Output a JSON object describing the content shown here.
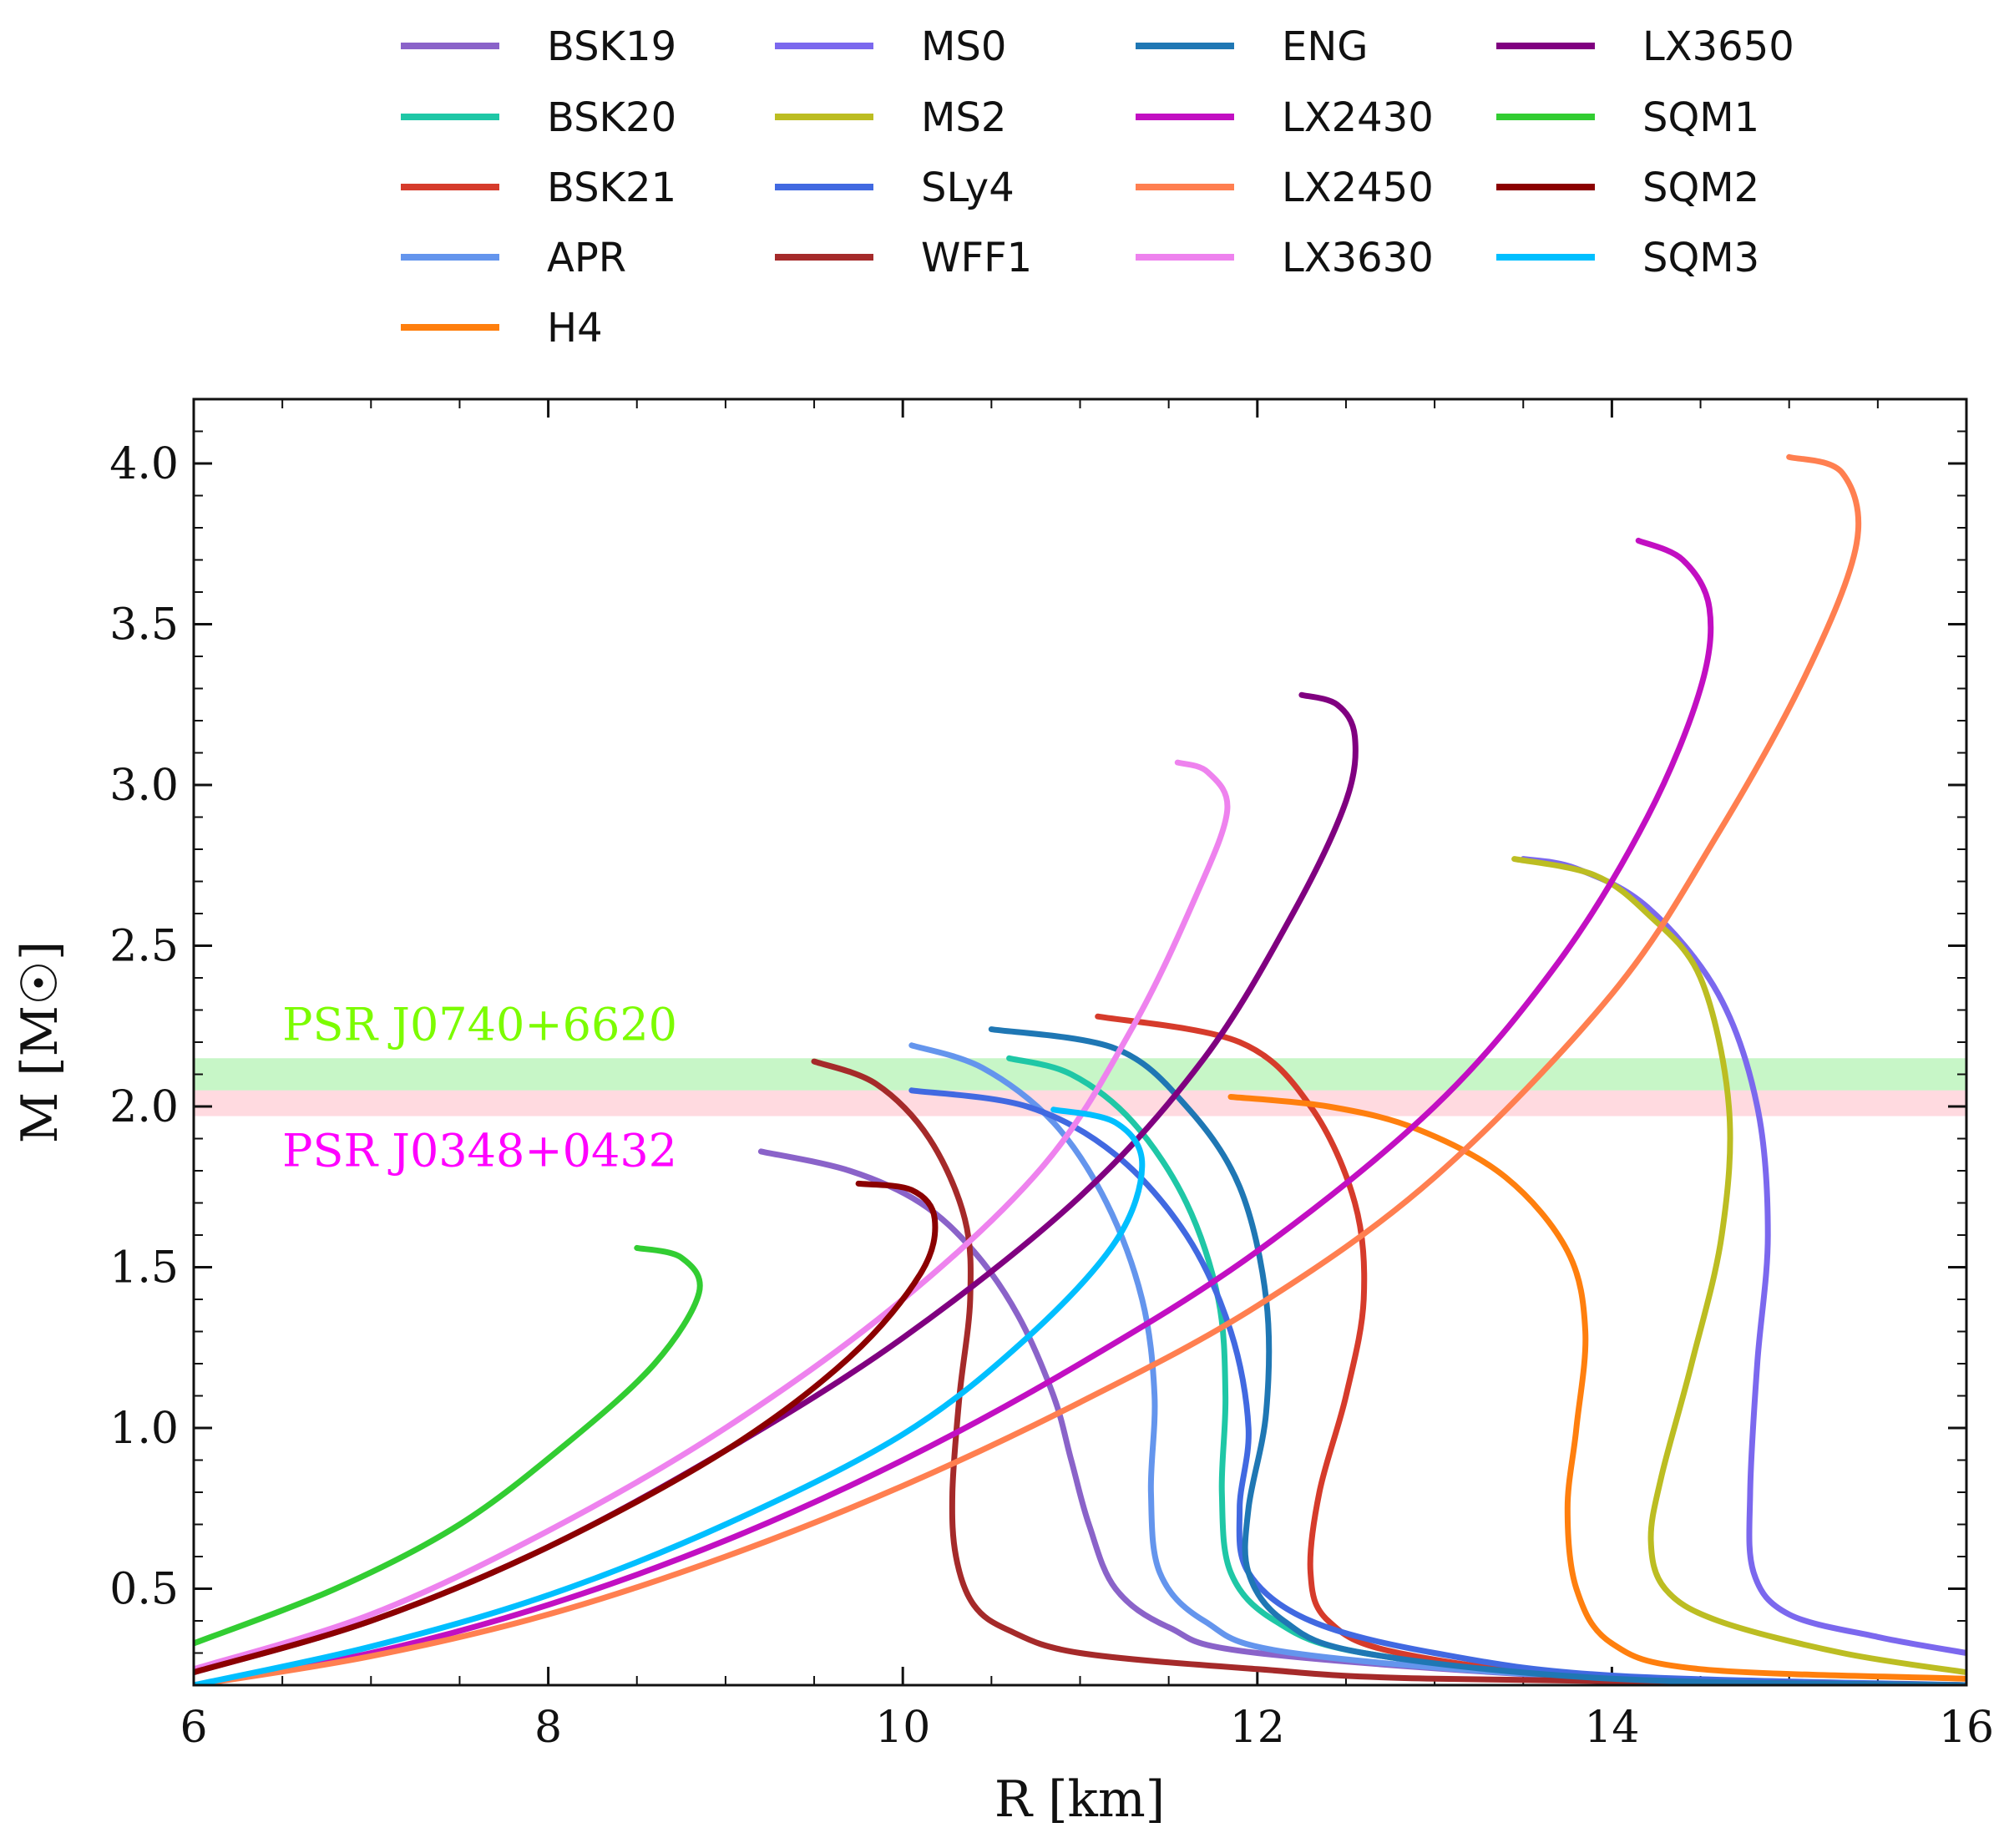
{
  "chart_data": {
    "type": "line",
    "title": "",
    "xlabel": "R [km]",
    "ylabel": "M [M☉]",
    "xlim": [
      6,
      16
    ],
    "ylim": [
      0.2,
      4.2
    ],
    "xticks": [
      6,
      8,
      10,
      12,
      14,
      16
    ],
    "yticks": [
      0.5,
      1.0,
      1.5,
      2.0,
      2.5,
      3.0,
      3.5,
      4.0
    ],
    "legend_position": "top",
    "bands": [
      {
        "name": "PSR J0740+6620",
        "ymin": 2.05,
        "ymax": 2.15,
        "color": "#90ee90",
        "label_color": "#7cfc00"
      },
      {
        "name": "PSR J0348+0432",
        "ymin": 1.97,
        "ymax": 2.05,
        "color": "#ffb6c1",
        "label_color": "#ff00ff"
      }
    ],
    "series": [
      {
        "name": "BSK19",
        "color": "#8a63c9",
        "points": [
          [
            16,
            0.2
          ],
          [
            14,
            0.22
          ],
          [
            12,
            0.3
          ],
          [
            11.5,
            0.38
          ],
          [
            11.2,
            0.5
          ],
          [
            11.05,
            0.7
          ],
          [
            10.95,
            0.9
          ],
          [
            10.85,
            1.1
          ],
          [
            10.65,
            1.35
          ],
          [
            10.4,
            1.55
          ],
          [
            10.1,
            1.7
          ],
          [
            9.7,
            1.8
          ],
          [
            9.2,
            1.86
          ]
        ]
      },
      {
        "name": "BSK20",
        "color": "#1fc7a6",
        "points": [
          [
            16,
            0.2
          ],
          [
            14,
            0.22
          ],
          [
            12.6,
            0.3
          ],
          [
            12.1,
            0.4
          ],
          [
            11.85,
            0.55
          ],
          [
            11.8,
            0.8
          ],
          [
            11.82,
            1.1
          ],
          [
            11.78,
            1.4
          ],
          [
            11.6,
            1.7
          ],
          [
            11.3,
            1.95
          ],
          [
            10.95,
            2.1
          ],
          [
            10.6,
            2.15
          ]
        ]
      },
      {
        "name": "BSK21",
        "color": "#d63b2b",
        "points": [
          [
            16,
            0.2
          ],
          [
            14,
            0.22
          ],
          [
            12.8,
            0.3
          ],
          [
            12.4,
            0.4
          ],
          [
            12.3,
            0.55
          ],
          [
            12.35,
            0.8
          ],
          [
            12.5,
            1.1
          ],
          [
            12.6,
            1.4
          ],
          [
            12.55,
            1.7
          ],
          [
            12.3,
            2.0
          ],
          [
            11.9,
            2.2
          ],
          [
            11.1,
            2.28
          ]
        ]
      },
      {
        "name": "APR",
        "color": "#6495ed",
        "points": [
          [
            16,
            0.2
          ],
          [
            14,
            0.22
          ],
          [
            12.2,
            0.3
          ],
          [
            11.7,
            0.4
          ],
          [
            11.45,
            0.55
          ],
          [
            11.4,
            0.8
          ],
          [
            11.42,
            1.1
          ],
          [
            11.35,
            1.4
          ],
          [
            11.15,
            1.7
          ],
          [
            10.85,
            1.95
          ],
          [
            10.45,
            2.12
          ],
          [
            10.05,
            2.19
          ]
        ]
      },
      {
        "name": "H4",
        "color": "#ff7f0e",
        "points": [
          [
            16,
            0.22
          ],
          [
            14.5,
            0.25
          ],
          [
            14,
            0.33
          ],
          [
            13.8,
            0.5
          ],
          [
            13.75,
            0.75
          ],
          [
            13.8,
            1.0
          ],
          [
            13.85,
            1.3
          ],
          [
            13.75,
            1.55
          ],
          [
            13.4,
            1.78
          ],
          [
            12.9,
            1.93
          ],
          [
            12.4,
            2.0
          ],
          [
            11.85,
            2.03
          ]
        ]
      },
      {
        "name": "MS0",
        "color": "#7b68ee",
        "points": [
          [
            16,
            0.3
          ],
          [
            15.5,
            0.35
          ],
          [
            15,
            0.42
          ],
          [
            14.8,
            0.55
          ],
          [
            14.78,
            0.8
          ],
          [
            14.82,
            1.2
          ],
          [
            14.88,
            1.6
          ],
          [
            14.82,
            2.0
          ],
          [
            14.6,
            2.35
          ],
          [
            14.2,
            2.62
          ],
          [
            13.8,
            2.74
          ],
          [
            13.5,
            2.77
          ]
        ]
      },
      {
        "name": "MS2",
        "color": "#bcbd22",
        "points": [
          [
            16,
            0.24
          ],
          [
            15.3,
            0.3
          ],
          [
            14.6,
            0.4
          ],
          [
            14.3,
            0.5
          ],
          [
            14.22,
            0.65
          ],
          [
            14.28,
            0.85
          ],
          [
            14.45,
            1.2
          ],
          [
            14.62,
            1.6
          ],
          [
            14.66,
            2.0
          ],
          [
            14.5,
            2.4
          ],
          [
            14.2,
            2.6
          ],
          [
            13.9,
            2.72
          ],
          [
            13.45,
            2.77
          ]
        ]
      },
      {
        "name": "SLy4",
        "color": "#4169e1",
        "points": [
          [
            16,
            0.2
          ],
          [
            14,
            0.23
          ],
          [
            13,
            0.3
          ],
          [
            12.3,
            0.4
          ],
          [
            11.95,
            0.55
          ],
          [
            11.9,
            0.75
          ],
          [
            11.95,
            1.0
          ],
          [
            11.85,
            1.3
          ],
          [
            11.6,
            1.6
          ],
          [
            11.2,
            1.85
          ],
          [
            10.7,
            2.0
          ],
          [
            10.05,
            2.05
          ]
        ]
      },
      {
        "name": "WFF1",
        "color": "#a52a2a",
        "points": [
          [
            16,
            0.2
          ],
          [
            13,
            0.22
          ],
          [
            12,
            0.25
          ],
          [
            11,
            0.3
          ],
          [
            10.6,
            0.37
          ],
          [
            10.4,
            0.45
          ],
          [
            10.3,
            0.6
          ],
          [
            10.28,
            0.8
          ],
          [
            10.32,
            1.1
          ],
          [
            10.38,
            1.4
          ],
          [
            10.35,
            1.65
          ],
          [
            10.15,
            1.9
          ],
          [
            9.85,
            2.07
          ],
          [
            9.5,
            2.14
          ]
        ]
      },
      {
        "name": "ENG",
        "color": "#1f77b4",
        "points": [
          [
            16,
            0.2
          ],
          [
            14,
            0.22
          ],
          [
            12.6,
            0.3
          ],
          [
            12.15,
            0.4
          ],
          [
            11.95,
            0.55
          ],
          [
            11.95,
            0.75
          ],
          [
            12.05,
            1.05
          ],
          [
            12.05,
            1.4
          ],
          [
            11.9,
            1.75
          ],
          [
            11.6,
            2.0
          ],
          [
            11.2,
            2.18
          ],
          [
            10.5,
            2.24
          ]
        ]
      },
      {
        "name": "LX2430",
        "color": "#c20fc2",
        "points": [
          [
            6,
            0.2
          ],
          [
            7,
            0.3
          ],
          [
            8,
            0.45
          ],
          [
            9,
            0.65
          ],
          [
            10,
            0.9
          ],
          [
            11,
            1.2
          ],
          [
            12,
            1.55
          ],
          [
            13,
            2.0
          ],
          [
            13.7,
            2.45
          ],
          [
            14.2,
            2.9
          ],
          [
            14.5,
            3.3
          ],
          [
            14.55,
            3.55
          ],
          [
            14.4,
            3.7
          ],
          [
            14.15,
            3.76
          ]
        ]
      },
      {
        "name": "LX2450",
        "color": "#ff7f50",
        "points": [
          [
            6,
            0.2
          ],
          [
            7,
            0.29
          ],
          [
            8,
            0.42
          ],
          [
            9,
            0.6
          ],
          [
            10,
            0.82
          ],
          [
            11,
            1.08
          ],
          [
            12,
            1.38
          ],
          [
            13,
            1.78
          ],
          [
            14,
            2.35
          ],
          [
            14.6,
            2.85
          ],
          [
            15.1,
            3.35
          ],
          [
            15.38,
            3.75
          ],
          [
            15.3,
            3.97
          ],
          [
            15,
            4.02
          ]
        ]
      },
      {
        "name": "LX3630",
        "color": "#ee82ee",
        "points": [
          [
            6,
            0.25
          ],
          [
            7,
            0.42
          ],
          [
            8,
            0.68
          ],
          [
            9,
            1.0
          ],
          [
            10,
            1.4
          ],
          [
            10.8,
            1.82
          ],
          [
            11.3,
            2.25
          ],
          [
            11.65,
            2.65
          ],
          [
            11.83,
            2.92
          ],
          [
            11.72,
            3.04
          ],
          [
            11.55,
            3.07
          ]
        ]
      },
      {
        "name": "LX3650",
        "color": "#800080",
        "points": [
          [
            6,
            0.24
          ],
          [
            7,
            0.4
          ],
          [
            8,
            0.63
          ],
          [
            9,
            0.93
          ],
          [
            10,
            1.28
          ],
          [
            11,
            1.72
          ],
          [
            11.7,
            2.15
          ],
          [
            12.2,
            2.6
          ],
          [
            12.5,
            2.95
          ],
          [
            12.55,
            3.15
          ],
          [
            12.45,
            3.25
          ],
          [
            12.25,
            3.28
          ]
        ]
      },
      {
        "name": "SQM1",
        "color": "#32cd32",
        "points": [
          [
            6,
            0.33
          ],
          [
            6.8,
            0.5
          ],
          [
            7.5,
            0.7
          ],
          [
            8.1,
            0.95
          ],
          [
            8.6,
            1.2
          ],
          [
            8.85,
            1.42
          ],
          [
            8.75,
            1.53
          ],
          [
            8.5,
            1.56
          ]
        ]
      },
      {
        "name": "SQM2",
        "color": "#8b0000",
        "points": [
          [
            6,
            0.24
          ],
          [
            7,
            0.4
          ],
          [
            8,
            0.63
          ],
          [
            9,
            0.93
          ],
          [
            9.7,
            1.22
          ],
          [
            10.1,
            1.48
          ],
          [
            10.18,
            1.65
          ],
          [
            10.05,
            1.74
          ],
          [
            9.75,
            1.76
          ]
        ]
      },
      {
        "name": "SQM3",
        "color": "#00bfff",
        "points": [
          [
            6,
            0.2
          ],
          [
            7,
            0.32
          ],
          [
            8,
            0.48
          ],
          [
            9,
            0.7
          ],
          [
            10,
            0.98
          ],
          [
            10.7,
            1.28
          ],
          [
            11.2,
            1.58
          ],
          [
            11.35,
            1.82
          ],
          [
            11.2,
            1.95
          ],
          [
            10.85,
            1.99
          ]
        ]
      }
    ]
  }
}
